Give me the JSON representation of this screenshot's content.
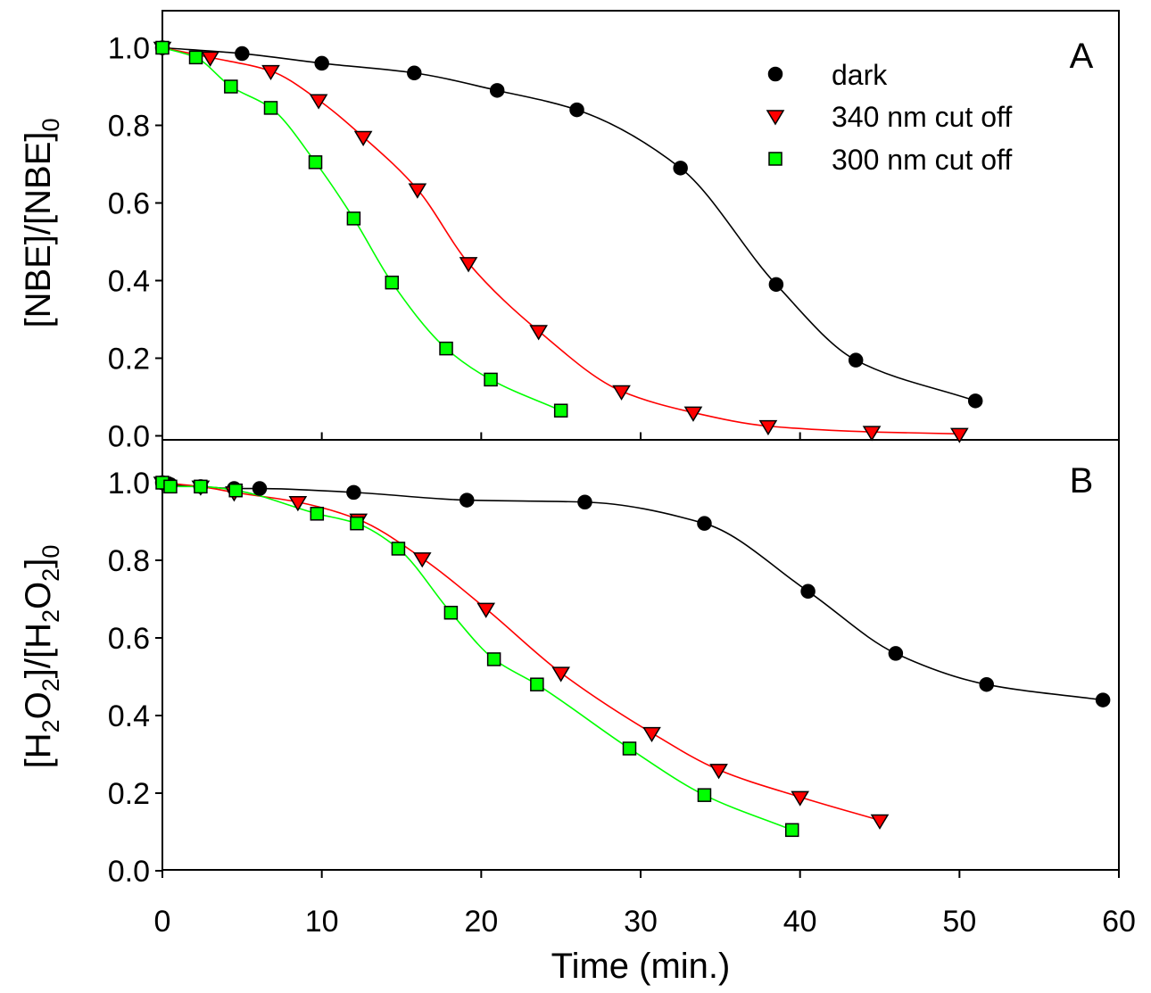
{
  "chart_data": [
    {
      "type": "line",
      "panel_label": "A",
      "ylabel": {
        "main": "[NBE]/[NBE]",
        "subscript": "0"
      },
      "xlim": [
        0,
        60
      ],
      "ylim": [
        0,
        1.1
      ],
      "yticks": [
        "0.0",
        "0.2",
        "0.4",
        "0.6",
        "0.8",
        "1.0"
      ],
      "ytick_values": [
        0,
        0.2,
        0.4,
        0.6,
        0.8,
        1.0
      ],
      "legend_position": "top-right",
      "legend": [
        {
          "label": "dark",
          "marker": "circle",
          "color": "#000000"
        },
        {
          "label": "340 nm cut off",
          "marker": "triangle-down",
          "color": "#ff0000"
        },
        {
          "label": "300 nm cut off",
          "marker": "square",
          "color": "#00ff00"
        }
      ],
      "series": [
        {
          "marker": "circle",
          "color": "#000000",
          "line_color": "#000000",
          "points": [
            [
              0,
              1.0
            ],
            [
              5,
              0.985
            ],
            [
              10,
              0.96
            ],
            [
              15.8,
              0.935
            ],
            [
              21,
              0.89
            ],
            [
              26,
              0.84
            ],
            [
              32.5,
              0.69
            ],
            [
              38.5,
              0.39
            ],
            [
              43.5,
              0.195
            ],
            [
              51,
              0.09
            ]
          ]
        },
        {
          "marker": "triangle-down",
          "color": "#ff0000",
          "line_color": "#ff0000",
          "points": [
            [
              0,
              1.0
            ],
            [
              3,
              0.975
            ],
            [
              6.8,
              0.94
            ],
            [
              9.8,
              0.865
            ],
            [
              12.6,
              0.77
            ],
            [
              16,
              0.635
            ],
            [
              19.2,
              0.445
            ],
            [
              23.6,
              0.27
            ],
            [
              28.8,
              0.115
            ],
            [
              33.3,
              0.06
            ],
            [
              38,
              0.025
            ],
            [
              44.5,
              0.01
            ],
            [
              50,
              0.005
            ]
          ]
        },
        {
          "marker": "square",
          "color": "#00ff00",
          "line_color": "#00ff00",
          "points": [
            [
              0,
              1.0
            ],
            [
              2.1,
              0.975
            ],
            [
              4.3,
              0.9
            ],
            [
              6.8,
              0.845
            ],
            [
              9.6,
              0.705
            ],
            [
              12,
              0.56
            ],
            [
              14.4,
              0.395
            ],
            [
              17.8,
              0.225
            ],
            [
              20.6,
              0.145
            ],
            [
              25,
              0.065
            ]
          ]
        }
      ]
    },
    {
      "type": "line",
      "panel_label": "B",
      "ylabel": {
        "p1": "[H",
        "s1": "2",
        "p2": "O",
        "s2": "2",
        "p3": "]/[H",
        "s3": "2",
        "p4": "O",
        "s4": "2",
        "p5": "]",
        "s5": "0"
      },
      "xlabel": "Time (min.)",
      "xlim": [
        0,
        60
      ],
      "ylim": [
        0,
        1.1
      ],
      "xticks": [
        "0",
        "10",
        "20",
        "30",
        "40",
        "50",
        "60"
      ],
      "xtick_values": [
        0,
        10,
        20,
        30,
        40,
        50,
        60
      ],
      "yticks": [
        "0.0",
        "0.2",
        "0.4",
        "0.6",
        "0.8",
        "1.0"
      ],
      "ytick_values": [
        0,
        0.2,
        0.4,
        0.6,
        0.8,
        1.0
      ],
      "series": [
        {
          "marker": "circle",
          "color": "#000000",
          "line_color": "#000000",
          "points": [
            [
              0,
              1.0
            ],
            [
              0.5,
              0.995
            ],
            [
              2.4,
              0.99
            ],
            [
              4.5,
              0.985
            ],
            [
              6.1,
              0.985
            ],
            [
              12,
              0.975
            ],
            [
              19.1,
              0.955
            ],
            [
              26.5,
              0.95
            ],
            [
              34,
              0.895
            ],
            [
              40.5,
              0.72
            ],
            [
              46,
              0.56
            ],
            [
              51.7,
              0.48
            ],
            [
              59,
              0.44
            ]
          ]
        },
        {
          "marker": "triangle-down",
          "color": "#ff0000",
          "line_color": "#ff0000",
          "points": [
            [
              0,
              1.0
            ],
            [
              2.4,
              0.99
            ],
            [
              4.5,
              0.975
            ],
            [
              8.5,
              0.95
            ],
            [
              12.3,
              0.905
            ],
            [
              16.3,
              0.805
            ],
            [
              20.3,
              0.675
            ],
            [
              25,
              0.51
            ],
            [
              30.7,
              0.355
            ],
            [
              34.9,
              0.26
            ],
            [
              40,
              0.19
            ],
            [
              45,
              0.13
            ]
          ]
        },
        {
          "marker": "square",
          "color": "#00ff00",
          "line_color": "#00ff00",
          "points": [
            [
              0,
              1.0
            ],
            [
              0.5,
              0.99
            ],
            [
              2.4,
              0.99
            ],
            [
              4.6,
              0.98
            ],
            [
              9.7,
              0.92
            ],
            [
              12.2,
              0.895
            ],
            [
              14.8,
              0.83
            ],
            [
              18.1,
              0.665
            ],
            [
              20.8,
              0.545
            ],
            [
              23.5,
              0.48
            ],
            [
              29.3,
              0.315
            ],
            [
              34,
              0.195
            ],
            [
              39.5,
              0.105
            ]
          ]
        }
      ]
    }
  ]
}
